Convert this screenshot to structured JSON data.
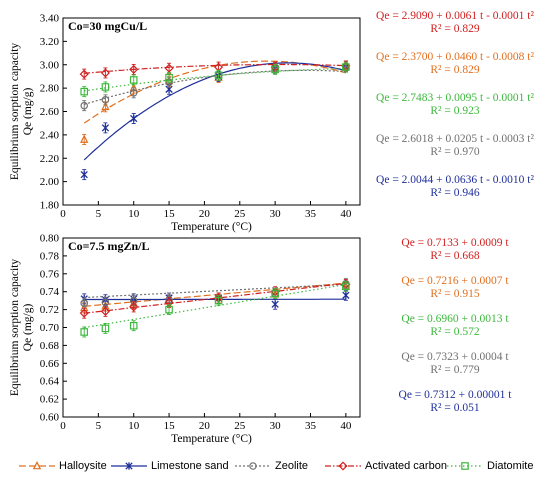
{
  "chart_data": [
    {
      "type": "line",
      "annotation": "Co=30 mgCu/L",
      "xlabel": "Temperature (°C)",
      "ylabel_line1": "Equilibrium sorption capacity",
      "ylabel_line2": "Qe (mg/g)",
      "xlim": [
        0,
        42
      ],
      "ylim": [
        1.8,
        3.4
      ],
      "xticks": [
        "0",
        "5",
        "10",
        "15",
        "20",
        "25",
        "30",
        "35",
        "40"
      ],
      "yticks": [
        "1.80",
        "2.00",
        "2.20",
        "2.40",
        "2.60",
        "2.80",
        "3.00",
        "3.20",
        "3.40"
      ],
      "x": [
        3,
        6,
        10,
        15,
        22,
        30,
        40
      ],
      "series": [
        {
          "name": "Halloysite",
          "color": "#e07020",
          "marker": "triangle",
          "dash": "7,3",
          "values": [
            2.36,
            2.64,
            2.8,
            2.86,
            2.89,
            2.98,
            2.99
          ],
          "fit": [
            2.37,
            0.046,
            -0.0008
          ]
        },
        {
          "name": "Limestone sand",
          "color": "#1f2f9a",
          "marker": "star",
          "dash": "",
          "values": [
            2.06,
            2.46,
            2.54,
            2.79,
            2.9,
            2.97,
            2.98
          ],
          "fit": [
            2.0044,
            0.0636,
            -0.001
          ]
        },
        {
          "name": "Zeolite",
          "color": "#707070",
          "marker": "circle",
          "dash": "2,2",
          "values": [
            2.65,
            2.7,
            2.76,
            2.85,
            2.91,
            2.97,
            2.98
          ],
          "fit": [
            2.6018,
            0.0205,
            -0.0003
          ]
        },
        {
          "name": "Activated carbon",
          "color": "#d02020",
          "marker": "diamond",
          "dash": "6,2,1.5,2",
          "values": [
            2.92,
            2.93,
            2.96,
            2.97,
            2.98,
            2.98,
            2.99
          ],
          "fit": [
            2.909,
            0.0061,
            -0.0001
          ]
        },
        {
          "name": "Diatomite",
          "color": "#3cb83c",
          "marker": "square",
          "dash": "1.5,2.5",
          "values": [
            2.77,
            2.81,
            2.87,
            2.89,
            2.91,
            2.96,
            2.98
          ],
          "fit": [
            2.7483,
            0.0095,
            -0.0001
          ]
        }
      ],
      "equations": [
        {
          "color": "#d02020",
          "eq": "Qe = 2.9090 + 0.0061 t - 0.0001 t²",
          "r2": "R² = 0.829"
        },
        {
          "color": "#e07020",
          "eq": "Qe = 2.3700 + 0.0460 t - 0.0008 t²",
          "r2": "R² = 0.829"
        },
        {
          "color": "#3cb83c",
          "eq": "Qe = 2.7483 + 0.0095 t - 0.0001 t²",
          "r2": "R² = 0.923"
        },
        {
          "color": "#707070",
          "eq": "Qe = 2.6018 + 0.0205 t - 0.0003 t²",
          "r2": "R² = 0.970"
        },
        {
          "color": "#1f2f9a",
          "eq": "Qe = 2.0044 + 0.0636 t - 0.0010 t²",
          "r2": "R² = 0.946"
        }
      ]
    },
    {
      "type": "line",
      "annotation": "Co=7.5 mgZn/L",
      "xlabel": "Temperature (°C)",
      "ylabel_line1": "Equilibrium sorption capacity",
      "ylabel_line2": "Qe (mg/g)",
      "xlim": [
        0,
        42
      ],
      "ylim": [
        0.6,
        0.8
      ],
      "xticks": [
        "0",
        "5",
        "10",
        "15",
        "20",
        "25",
        "30",
        "35",
        "40"
      ],
      "yticks": [
        "0.60",
        "0.62",
        "0.64",
        "0.66",
        "0.68",
        "0.70",
        "0.72",
        "0.74",
        "0.76",
        "0.78",
        "0.80"
      ],
      "x": [
        3,
        6,
        10,
        15,
        22,
        30,
        40
      ],
      "series": [
        {
          "name": "Halloysite",
          "color": "#e07020",
          "marker": "triangle",
          "dash": "7,3",
          "values": [
            0.722,
            0.724,
            0.727,
            0.73,
            0.733,
            0.737,
            0.746
          ],
          "fit": [
            0.7216,
            0.0007
          ]
        },
        {
          "name": "Limestone sand",
          "color": "#1f2f9a",
          "marker": "star",
          "dash": "",
          "values": [
            0.732,
            0.731,
            0.732,
            0.733,
            0.733,
            0.726,
            0.736
          ],
          "fit": [
            0.7312,
            1e-05
          ]
        },
        {
          "name": "Zeolite",
          "color": "#707070",
          "marker": "circle",
          "dash": "2,2",
          "values": [
            0.727,
            0.728,
            0.73,
            0.731,
            0.733,
            0.738,
            0.749
          ],
          "fit": [
            0.7323,
            0.0004
          ]
        },
        {
          "name": "Activated carbon",
          "color": "#d02020",
          "marker": "diamond",
          "dash": "6,2,1.5,2",
          "values": [
            0.716,
            0.718,
            0.723,
            0.728,
            0.733,
            0.74,
            0.748
          ],
          "fit": [
            0.7133,
            0.0009
          ]
        },
        {
          "name": "Diatomite",
          "color": "#3cb83c",
          "marker": "square",
          "dash": "1.5,2.5",
          "values": [
            0.695,
            0.699,
            0.702,
            0.72,
            0.73,
            0.738,
            0.746
          ],
          "fit": [
            0.696,
            0.0013
          ]
        }
      ],
      "equations": [
        {
          "color": "#d02020",
          "eq": "Qe = 0.7133 + 0.0009 t",
          "r2": "R² = 0.668"
        },
        {
          "color": "#e07020",
          "eq": "Qe = 0.7216 + 0.0007 t",
          "r2": "R² = 0.915"
        },
        {
          "color": "#3cb83c",
          "eq": "Qe = 0.6960 + 0.0013 t",
          "r2": "R² = 0.572"
        },
        {
          "color": "#707070",
          "eq": "Qe = 0.7323 + 0.0004 t",
          "r2": "R² = 0.779"
        },
        {
          "color": "#1f2f9a",
          "eq": "Qe = 0.7312 + 0.00001 t",
          "r2": "R² = 0.051"
        }
      ]
    }
  ],
  "legend": [
    {
      "label": "Halloysite",
      "color": "#e07020",
      "marker": "triangle",
      "dash": "7,3"
    },
    {
      "label": "Limestone sand",
      "color": "#1f2f9a",
      "marker": "star",
      "dash": ""
    },
    {
      "label": "Zeolite",
      "color": "#707070",
      "marker": "circle",
      "dash": "2,2"
    },
    {
      "label": "Activated carbon",
      "color": "#d02020",
      "marker": "diamond",
      "dash": "6,2,1.5,2"
    },
    {
      "label": "Diatomite",
      "color": "#3cb83c",
      "marker": "square",
      "dash": "1.5,2.5"
    }
  ]
}
